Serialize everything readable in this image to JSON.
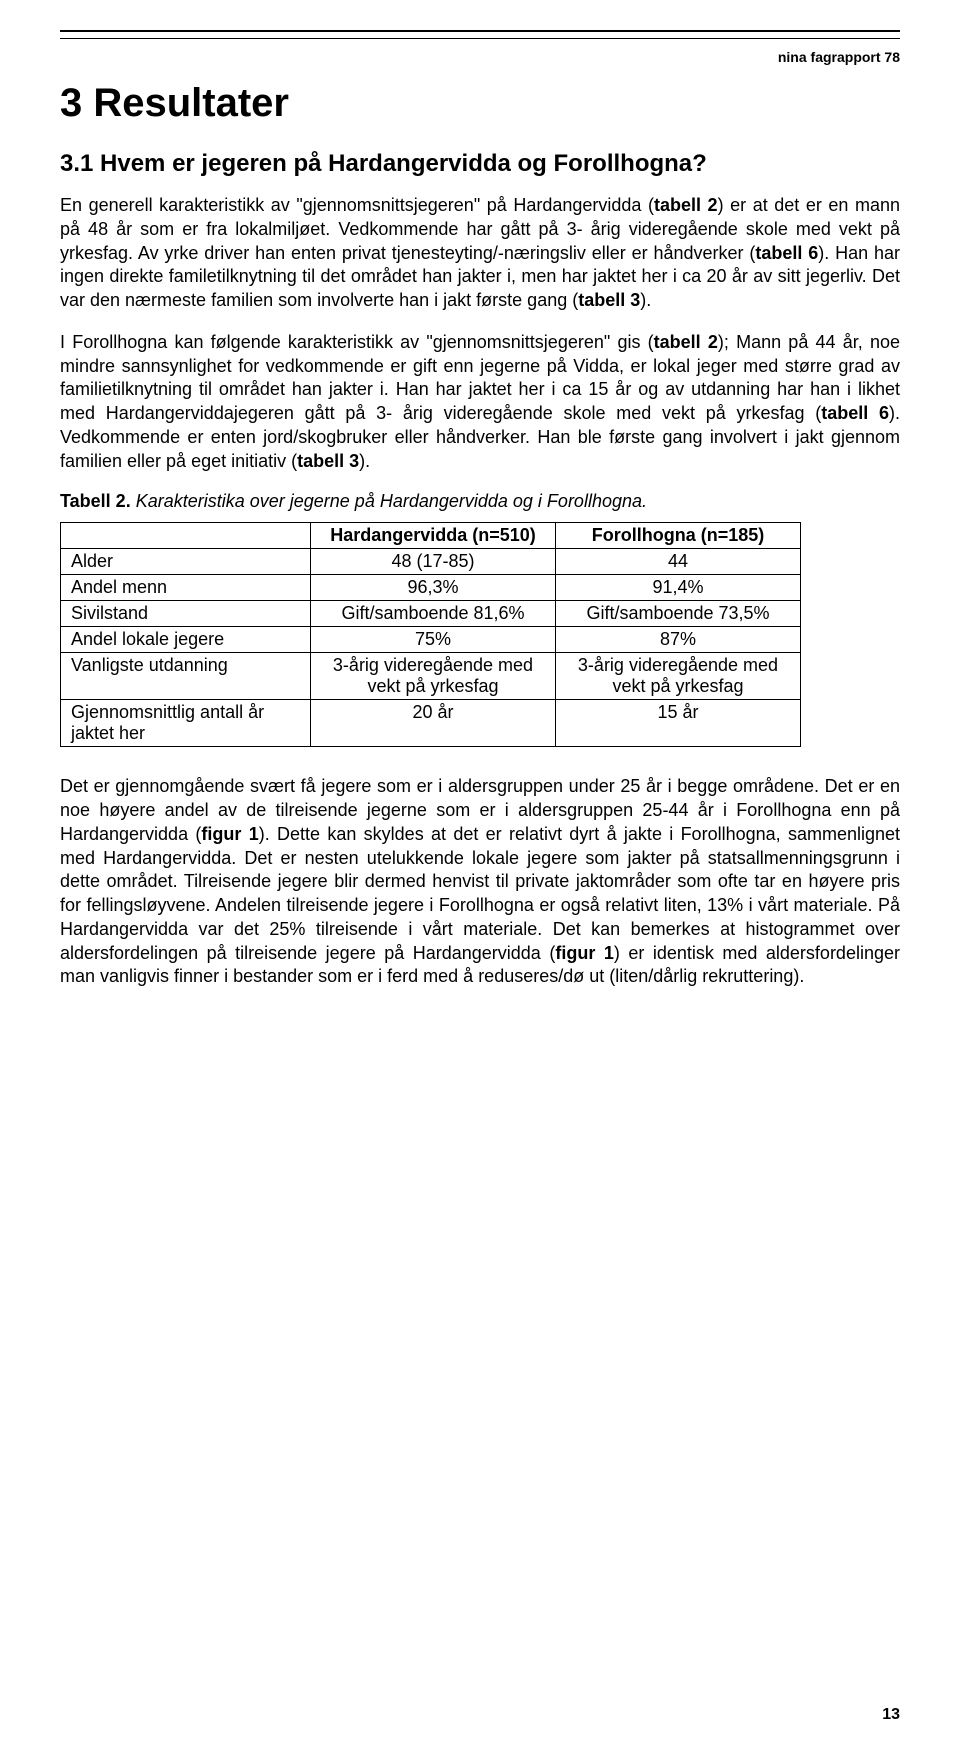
{
  "header": {
    "tag": "nina fagrapport 78"
  },
  "h1": "3  Resultater",
  "h2": "3.1  Hvem er jegeren på Hardangervidda og Forollhogna?",
  "para1": "En generell karakteristikk av \"gjennomsnittsjegeren\" på Hardangervidda (tabell 2) er at det er en mann på 48 år som er fra lokalmiljøet. Vedkommende har gått på 3- årig videregående skole med vekt på yrkesfag. Av yrke driver han enten privat tjenesteyting/-næringsliv eller er håndverker (tabell 6). Han har ingen direkte familetilknytning til det området han jakter i, men har jaktet her i ca 20 år av sitt jegerliv. Det var den nærmeste familien som involverte han i jakt første gang (tabell 3).",
  "para2": "I Forollhogna kan følgende karakteristikk av \"gjennomsnittsjegeren\" gis (tabell 2); Mann på 44 år, noe mindre sannsynlighet for vedkommende er gift enn jegerne på Vidda, er lokal jeger med større grad av familietilknytning til området han jakter i. Han har jaktet her i ca 15 år og av utdanning har han i likhet med Hardangerviddajegeren gått på 3- årig videregående skole med vekt på yrkesfag (tabell 6). Vedkommende er enten jord/skogbruker eller håndverker. Han ble første gang involvert i jakt gjennom familien eller på eget initiativ (tabell 3).",
  "tableCaption": {
    "label": "Tabell 2.",
    "text": " Karakteristika over jegerne på Hardangervidda og i Forollhogna."
  },
  "table": {
    "headers": [
      "",
      "Hardangervidda (n=510)",
      "Forollhogna (n=185)"
    ],
    "rows": [
      [
        "Alder",
        "48 (17-85)",
        "44"
      ],
      [
        "Andel menn",
        "96,3%",
        "91,4%"
      ],
      [
        "Sivilstand",
        "Gift/samboende 81,6%",
        "Gift/samboende 73,5%"
      ],
      [
        "Andel lokale jegere",
        "75%",
        "87%"
      ],
      [
        "Vanligste utdanning",
        "3-årig videregående med vekt på yrkesfag",
        "3-årig videregående med vekt på yrkesfag"
      ],
      [
        "Gjennomsnittlig antall år jaktet her",
        "20 år",
        "15 år"
      ]
    ]
  },
  "para3": "Det er gjennomgående svært få jegere som er i aldersgruppen under 25 år i begge områdene. Det er en noe høyere andel av de tilreisende jegerne som er i aldersgruppen 25-44 år i Forollhogna enn på Hardangervidda (figur 1). Dette kan skyldes at det er relativt dyrt å jakte i Forollhogna, sammenlignet med Hardangervidda.  Det er nesten utelukkende lokale jegere som jakter på statsallmenningsgrunn i dette området. Tilreisende jegere blir dermed henvist til private jaktområder som ofte tar en høyere pris for fellingsløyvene. Andelen tilreisende jegere i Forollhogna er også relativt liten, 13% i vårt materiale. På Hardangervidda var det 25% tilreisende i vårt materiale. Det kan bemerkes at histogrammet over aldersfordelingen på tilreisende jegere på Hardangervidda (figur 1) er identisk med aldersfordelinger man vanligvis finner i bestander som er i ferd med å reduseres/dø ut (liten/dårlig rekruttering).",
  "pageNumber": "13"
}
